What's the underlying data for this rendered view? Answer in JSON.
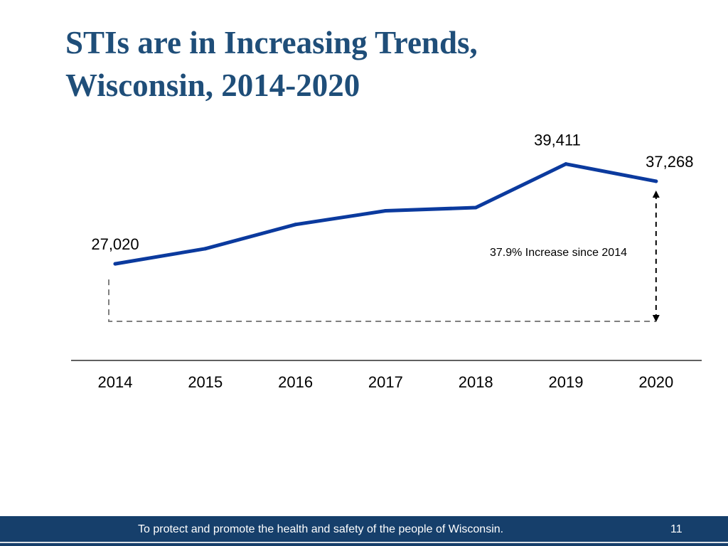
{
  "slide": {
    "title_line1": "STIs are in Increasing Trends,",
    "title_line2": "Wisconsin, 2014-2020",
    "footer_text": "To protect and promote the health and safety of the people of Wisconsin.",
    "page_number": "11"
  },
  "colors": {
    "title": "#1f4e79",
    "line": "#0b3a9e",
    "footer": "#163f6b"
  },
  "chart_data": {
    "type": "line",
    "title": "",
    "xlabel": "",
    "ylabel": "",
    "categories": [
      "2014",
      "2015",
      "2016",
      "2017",
      "2018",
      "2019",
      "2020"
    ],
    "series": [
      {
        "name": "STIs",
        "values": [
          27020,
          28900,
          31900,
          33600,
          34000,
          39411,
          37268
        ]
      }
    ],
    "data_labels": [
      {
        "index": 0,
        "text": "27,020"
      },
      {
        "index": 5,
        "text": "39,411"
      },
      {
        "index": 6,
        "text": "37,268"
      }
    ],
    "annotation": "37.9% Increase since 2014",
    "ylim": [
      13000,
      43000
    ],
    "grid": false
  }
}
